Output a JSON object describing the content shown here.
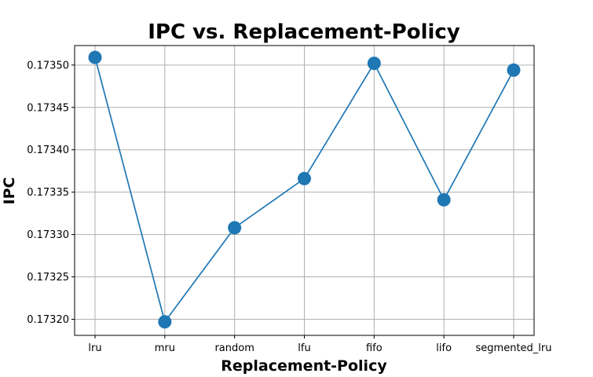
{
  "chart_data": {
    "type": "line",
    "title": "IPC vs. Replacement-Policy",
    "xlabel": "Replacement-Policy",
    "ylabel": "IPC",
    "categories": [
      "lru",
      "mru",
      "random",
      "lfu",
      "fifo",
      "lifo",
      "segmented_lru"
    ],
    "series": [
      {
        "values": [
          0.173509,
          0.173197,
          0.173308,
          0.173366,
          0.173502,
          0.173341,
          0.173494
        ]
      }
    ],
    "ylim": [
      0.173181,
      0.173523
    ],
    "yticks": [
      0.1732,
      0.17325,
      0.1733,
      0.17335,
      0.1734,
      0.17345,
      0.1735
    ],
    "ytick_labels": [
      "0.17320",
      "0.17325",
      "0.17330",
      "0.17335",
      "0.17340",
      "0.17345",
      "0.17350"
    ],
    "grid": true,
    "colors": {
      "series": "#1f77b4"
    }
  }
}
